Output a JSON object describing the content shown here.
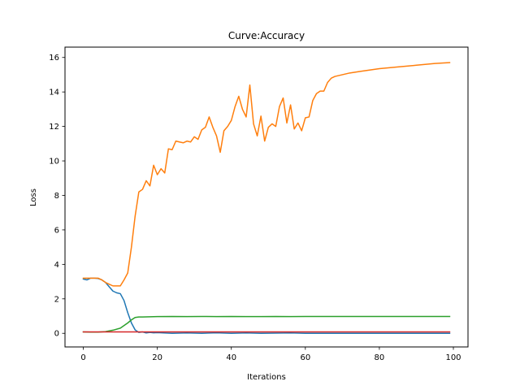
{
  "chart_data": {
    "type": "line",
    "title": "Curve:Accuracy",
    "xlabel": "Iterations",
    "ylabel": "Loss",
    "xlim": [
      -4.95,
      103.95
    ],
    "ylim": [
      -0.79,
      16.6
    ],
    "xticks": [
      0,
      20,
      40,
      60,
      80,
      100
    ],
    "yticks": [
      0,
      2,
      4,
      6,
      8,
      10,
      12,
      14,
      16
    ],
    "grid": false,
    "legend": "none",
    "series": [
      {
        "color": "#1f77b4",
        "x": [
          0,
          1,
          2,
          3,
          4,
          5,
          6,
          7,
          8,
          9,
          10,
          11,
          12,
          13,
          14,
          15,
          16,
          17,
          18,
          19,
          20,
          24,
          28,
          32,
          36,
          40,
          44,
          48,
          52,
          56,
          60,
          64,
          68,
          72,
          76,
          80,
          84,
          88,
          92,
          96,
          99
        ],
        "y": [
          3.15,
          3.1,
          3.2,
          3.2,
          3.18,
          3.1,
          2.95,
          2.7,
          2.45,
          2.35,
          2.3,
          1.9,
          1.2,
          0.6,
          0.2,
          0.05,
          0.08,
          0.02,
          0.05,
          0.03,
          0.04,
          0.0,
          0.02,
          0.0,
          0.03,
          0.0,
          0.02,
          0.0,
          0.01,
          0.02,
          0.0,
          0.0,
          0.0,
          0.0,
          0.0,
          0.0,
          0.0,
          0.0,
          0.0,
          0.0,
          0.0
        ]
      },
      {
        "color": "#ff7f0e",
        "x": [
          0,
          1,
          2,
          3,
          4,
          5,
          6,
          7,
          8,
          9,
          10,
          11,
          12,
          13,
          14,
          15,
          16,
          17,
          18,
          19,
          20,
          21,
          22,
          23,
          24,
          25,
          26,
          27,
          28,
          29,
          30,
          31,
          32,
          33,
          34,
          35,
          36,
          37,
          38,
          39,
          40,
          41,
          42,
          43,
          44,
          45,
          46,
          47,
          48,
          49,
          50,
          51,
          52,
          53,
          54,
          55,
          56,
          57,
          58,
          59,
          60,
          61,
          62,
          63,
          64,
          65,
          66,
          67,
          68,
          70,
          72,
          75,
          80,
          85,
          90,
          95,
          99
        ],
        "y": [
          3.2,
          3.2,
          3.2,
          3.2,
          3.2,
          3.1,
          2.95,
          2.85,
          2.75,
          2.75,
          2.75,
          3.1,
          3.5,
          5.0,
          6.8,
          8.2,
          8.35,
          8.85,
          8.55,
          9.75,
          9.2,
          9.55,
          9.3,
          10.7,
          10.65,
          11.15,
          11.1,
          11.05,
          11.15,
          11.1,
          11.4,
          11.25,
          11.8,
          11.95,
          12.55,
          11.95,
          11.45,
          10.5,
          11.75,
          12.0,
          12.35,
          13.15,
          13.75,
          13.0,
          12.55,
          14.4,
          12.15,
          11.45,
          12.6,
          11.15,
          11.95,
          12.15,
          12.0,
          13.15,
          13.65,
          12.2,
          13.25,
          11.85,
          12.2,
          11.75,
          12.5,
          12.55,
          13.5,
          13.9,
          14.05,
          14.05,
          14.55,
          14.8,
          14.9,
          15.0,
          15.1,
          15.2,
          15.35,
          15.45,
          15.55,
          15.65,
          15.7
        ]
      },
      {
        "color": "#2ca02c",
        "x": [
          0,
          2,
          4,
          6,
          8,
          10,
          12,
          13,
          14,
          15,
          16,
          18,
          20,
          24,
          28,
          32,
          36,
          40,
          44,
          48,
          52,
          56,
          60,
          70,
          80,
          90,
          99
        ],
        "y": [
          0.08,
          0.07,
          0.07,
          0.1,
          0.18,
          0.3,
          0.6,
          0.78,
          0.92,
          0.95,
          0.95,
          0.96,
          0.97,
          0.98,
          0.97,
          0.98,
          0.97,
          0.98,
          0.97,
          0.97,
          0.98,
          0.97,
          0.98,
          0.98,
          0.98,
          0.98,
          0.98
        ]
      },
      {
        "color": "#d62728",
        "x": [
          0,
          4,
          8,
          12,
          16,
          20,
          24,
          28,
          32,
          36,
          40,
          44,
          48,
          52,
          56,
          60,
          70,
          80,
          90,
          99
        ],
        "y": [
          0.08,
          0.08,
          0.08,
          0.08,
          0.08,
          0.08,
          0.08,
          0.08,
          0.08,
          0.08,
          0.08,
          0.08,
          0.08,
          0.08,
          0.08,
          0.08,
          0.08,
          0.08,
          0.08,
          0.08
        ]
      }
    ]
  }
}
